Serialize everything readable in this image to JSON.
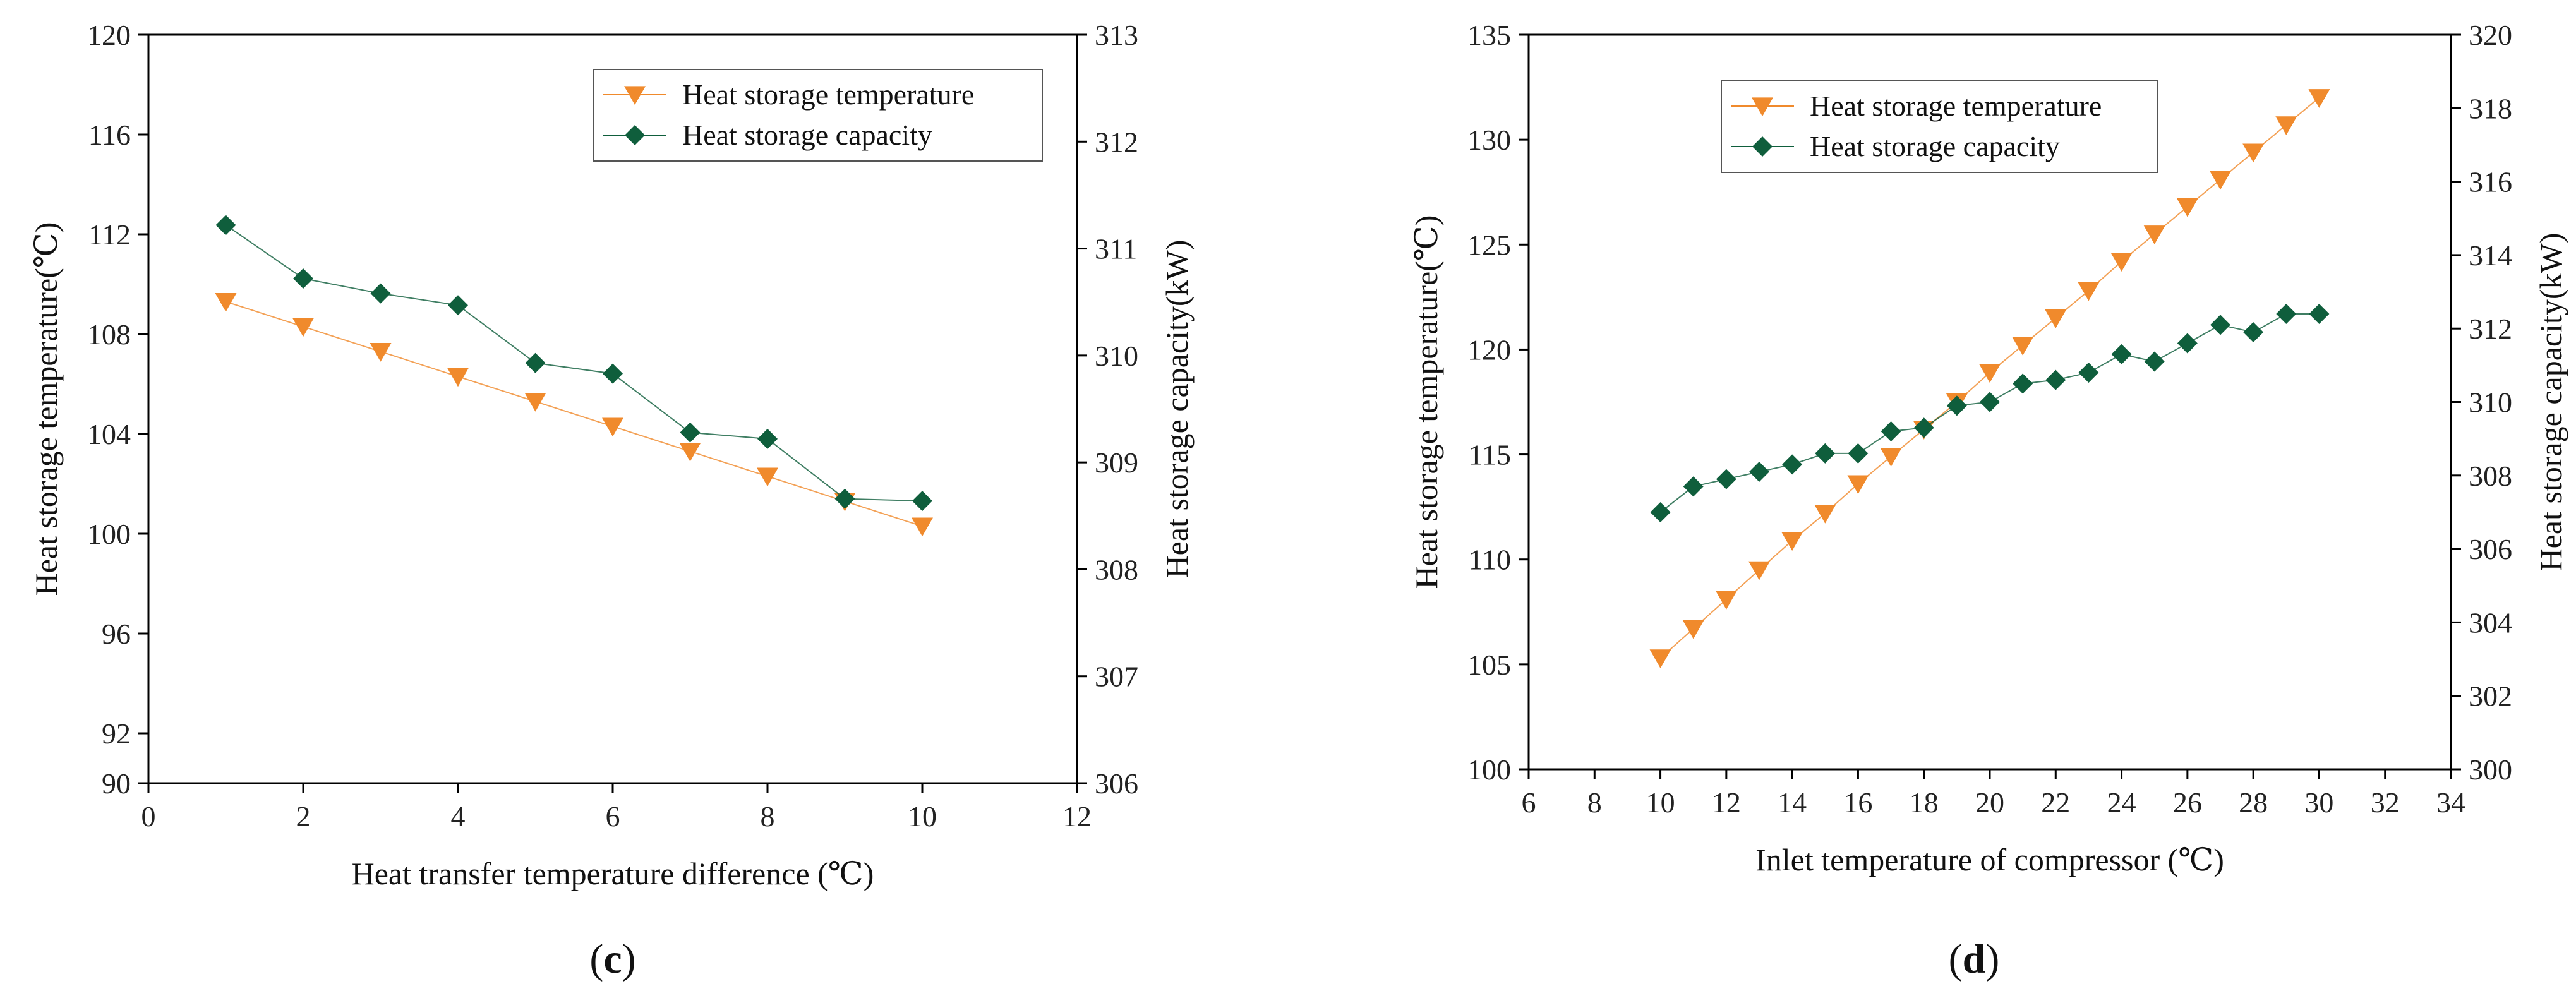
{
  "colors": {
    "temperature": "#f08a2c",
    "capacity": "#0f5e3c"
  },
  "chart_data": [
    {
      "type": "line",
      "panel_label": "c",
      "xlabel": "Heat transfer temperature difference (℃)",
      "ylabel_left": "Heat storage temperature(℃)",
      "ylabel_right": "Heat storage capacity(kW)",
      "xlim": [
        0,
        12
      ],
      "xticks": [
        0,
        2,
        4,
        6,
        8,
        10,
        12
      ],
      "ylim_left": [
        90,
        120
      ],
      "yticks_left": [
        90,
        92,
        96,
        100,
        104,
        108,
        112,
        116,
        120
      ],
      "ylim_right": [
        306,
        313
      ],
      "yticks_right": [
        306,
        307,
        308,
        309,
        310,
        311,
        312,
        313
      ],
      "legend_position": "top-right",
      "series": [
        {
          "name": "Heat storage temperature",
          "axis": "left",
          "marker": "triangle-down",
          "color": "#f08a2c",
          "x": [
            1,
            2,
            3,
            4,
            5,
            6,
            7,
            8,
            9,
            10
          ],
          "y": [
            109.3,
            108.3,
            107.3,
            106.3,
            105.3,
            104.3,
            103.3,
            102.3,
            101.3,
            100.3
          ]
        },
        {
          "name": "Heat storage capacity",
          "axis": "right",
          "marker": "diamond",
          "color": "#0f5e3c",
          "x": [
            1,
            2,
            3,
            4,
            5,
            6,
            7,
            8,
            9,
            10
          ],
          "y": [
            311.22,
            310.72,
            310.58,
            310.47,
            309.93,
            309.83,
            309.28,
            309.22,
            308.66,
            308.64
          ]
        }
      ]
    },
    {
      "type": "line",
      "panel_label": "d",
      "xlabel": "Inlet temperature of compressor (℃)",
      "ylabel_left": "Heat storage temperature(℃)",
      "ylabel_right": "Heat storage capacity(kW)",
      "xlim": [
        6,
        34
      ],
      "xticks": [
        6,
        8,
        10,
        12,
        14,
        16,
        18,
        20,
        22,
        24,
        26,
        28,
        30,
        32,
        34
      ],
      "ylim_left": [
        100,
        135
      ],
      "yticks_left": [
        100,
        105,
        110,
        115,
        120,
        125,
        130,
        135
      ],
      "ylim_right": [
        300,
        320
      ],
      "yticks_right": [
        300,
        302,
        304,
        306,
        308,
        310,
        312,
        314,
        316,
        318,
        320
      ],
      "legend_position": "top-left",
      "series": [
        {
          "name": "Heat storage temperature",
          "axis": "left",
          "marker": "triangle-down",
          "color": "#f08a2c",
          "x": [
            10,
            11,
            12,
            13,
            14,
            15,
            16,
            17,
            18,
            19,
            20,
            21,
            22,
            23,
            24,
            25,
            26,
            27,
            28,
            29,
            30
          ],
          "y": [
            105.3,
            106.7,
            108.1,
            109.5,
            110.9,
            112.2,
            113.6,
            114.9,
            116.2,
            117.5,
            118.9,
            120.2,
            121.5,
            122.8,
            124.2,
            125.5,
            126.8,
            128.1,
            129.4,
            130.7,
            132.0
          ]
        },
        {
          "name": "Heat storage capacity",
          "axis": "right",
          "marker": "diamond",
          "color": "#0f5e3c",
          "x": [
            10,
            11,
            12,
            13,
            14,
            15,
            16,
            17,
            18,
            19,
            20,
            21,
            22,
            23,
            24,
            25,
            26,
            27,
            28,
            29,
            30
          ],
          "y": [
            307.0,
            307.7,
            307.9,
            308.1,
            308.3,
            308.6,
            308.6,
            309.2,
            309.3,
            309.9,
            310.0,
            310.5,
            310.6,
            310.8,
            311.3,
            311.1,
            311.6,
            312.1,
            311.9,
            312.4,
            312.4
          ]
        }
      ]
    }
  ]
}
